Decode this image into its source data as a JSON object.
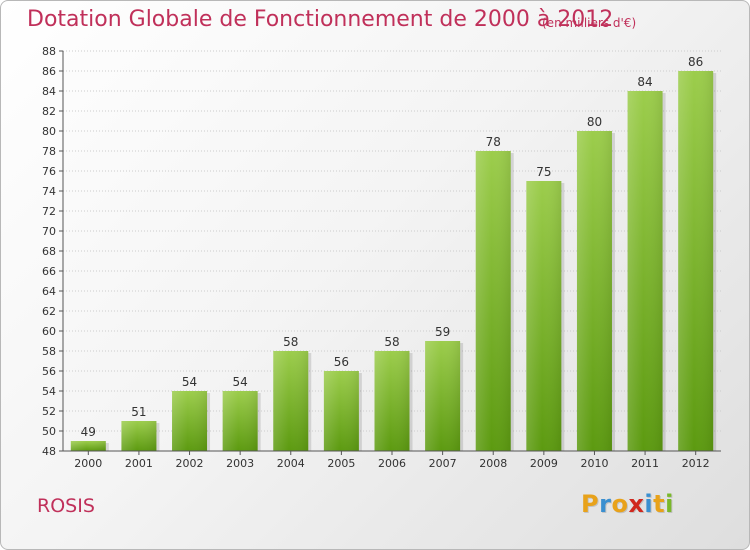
{
  "header": {
    "title": "Dotation Globale de Fonctionnement de 2000 à 2012",
    "unit": "(en milliers d'€)"
  },
  "footer": {
    "commune": "ROSIS",
    "logo": "Proxiti"
  },
  "colors": {
    "title": "#c0305a",
    "bar_light": "#9ccd4c",
    "bar_dark": "#5c9a10",
    "logo_letters": [
      "#e8a21a",
      "#3a8fd0",
      "#e8a21a",
      "#d0281e",
      "#3a8fd0",
      "#e8a21a",
      "#7ab82a"
    ]
  },
  "chart_data": {
    "type": "bar",
    "title": "Dotation Globale de Fonctionnement de 2000 à 2012",
    "xlabel": "",
    "ylabel": "",
    "categories": [
      "2000",
      "2001",
      "2002",
      "2003",
      "2004",
      "2005",
      "2006",
      "2007",
      "2008",
      "2009",
      "2010",
      "2011",
      "2012"
    ],
    "values": [
      49,
      51,
      54,
      54,
      58,
      56,
      58,
      59,
      78,
      75,
      80,
      84,
      86
    ],
    "ylim": [
      48,
      88
    ],
    "ytick_step": 2,
    "grid": true
  }
}
